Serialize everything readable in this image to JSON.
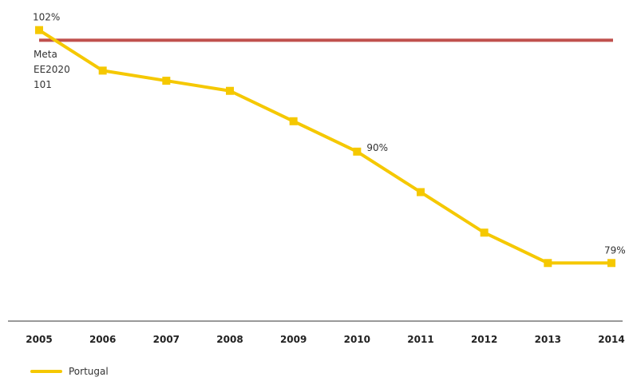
{
  "chart_data": {
    "type": "line",
    "x": [
      "2005",
      "2006",
      "2007",
      "2008",
      "2009",
      "2010",
      "2011",
      "2012",
      "2013",
      "2014"
    ],
    "series": [
      {
        "name": "Portugal",
        "values": [
          102,
          98,
          97,
          96,
          93,
          90,
          86,
          82,
          79,
          79
        ],
        "color": "#f5c800"
      }
    ],
    "reference_line": {
      "value": 101,
      "label_lines": [
        "Meta",
        "EE2020",
        "101"
      ],
      "color": "#c0504d"
    },
    "data_labels": [
      {
        "index": 0,
        "text": "102%"
      },
      {
        "index": 5,
        "text": "90%"
      },
      {
        "index": 9,
        "text": "79%"
      }
    ],
    "ylim": [
      75,
      103
    ],
    "grid": false,
    "legend_position": "bottom-left"
  }
}
